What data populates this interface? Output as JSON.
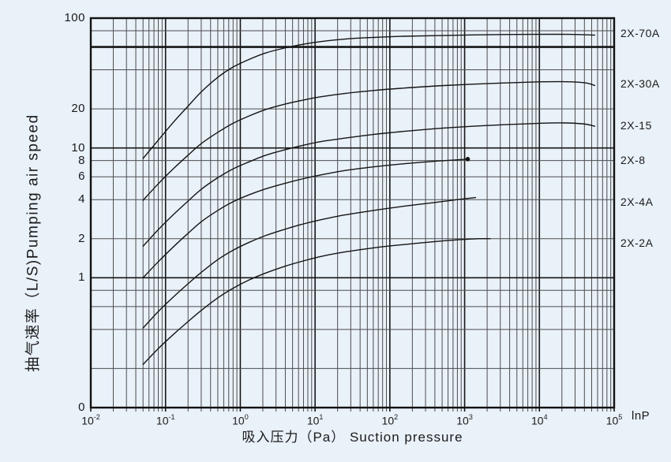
{
  "colors": {
    "background": "#e9f1f9",
    "grid_minor": "#4d4d4d",
    "grid_major": "#161616",
    "border": "#111111",
    "curve": "#151515",
    "text": "#1b1b1b"
  },
  "chart_data": {
    "type": "line",
    "title": "",
    "xlabel": "吸入压力（Pa） Suction pressure",
    "x_axis_right_label": "lnP",
    "ylabel": "抽气速率（L/S)Pumping air speed",
    "x_scale": "log",
    "y_scale": "log",
    "xlim": [
      0.01,
      100000
    ],
    "ylim": [
      0.1,
      100
    ],
    "grid": "on",
    "emphasized_gridline_y": 60,
    "x_tick_exponents": [
      "-2",
      "-1",
      "0",
      "1",
      "2",
      "3",
      "4",
      "5"
    ],
    "y_ticks": [
      {
        "label": "100",
        "value": 100
      },
      {
        "label": "20",
        "value": 20
      },
      {
        "label": "10",
        "value": 10
      },
      {
        "label": "8",
        "value": 8
      },
      {
        "label": "6",
        "value": 6
      },
      {
        "label": "4",
        "value": 4
      },
      {
        "label": "2",
        "value": 2
      },
      {
        "label": "1",
        "value": 1
      },
      {
        "label": "0",
        "value": 0.1
      }
    ],
    "legend_position": "right-margin",
    "series": [
      {
        "name": "2X-70A",
        "label_y_value": 77,
        "end_dot": false,
        "points": [
          [
            0.05,
            8.3
          ],
          [
            0.08,
            11.5
          ],
          [
            0.13,
            16
          ],
          [
            0.2,
            21
          ],
          [
            0.3,
            27
          ],
          [
            0.5,
            35
          ],
          [
            0.8,
            42
          ],
          [
            1.3,
            48
          ],
          [
            2.2,
            54
          ],
          [
            4,
            59
          ],
          [
            7,
            63
          ],
          [
            12,
            66
          ],
          [
            25,
            69
          ],
          [
            60,
            71
          ],
          [
            150,
            72.5
          ],
          [
            500,
            73.5
          ],
          [
            2000,
            74.5
          ],
          [
            8000,
            75
          ],
          [
            25000,
            75
          ],
          [
            55000,
            74
          ]
        ]
      },
      {
        "name": "2X-30A",
        "label_y_value": 31.5,
        "end_dot": false,
        "points": [
          [
            0.05,
            3.95
          ],
          [
            0.08,
            5.3
          ],
          [
            0.13,
            7
          ],
          [
            0.2,
            8.8
          ],
          [
            0.3,
            10.8
          ],
          [
            0.5,
            13.2
          ],
          [
            0.8,
            15.5
          ],
          [
            1.3,
            17.6
          ],
          [
            2.2,
            19.8
          ],
          [
            4,
            21.8
          ],
          [
            7,
            23.4
          ],
          [
            12,
            24.8
          ],
          [
            25,
            26.3
          ],
          [
            60,
            27.7
          ],
          [
            150,
            28.9
          ],
          [
            500,
            30.2
          ],
          [
            2000,
            31.3
          ],
          [
            8000,
            32.2
          ],
          [
            20000,
            32.4
          ],
          [
            40000,
            31.8
          ],
          [
            55000,
            30.3
          ]
        ]
      },
      {
        "name": "2X-15",
        "label_y_value": 14.9,
        "end_dot": false,
        "points": [
          [
            0.05,
            1.75
          ],
          [
            0.08,
            2.35
          ],
          [
            0.13,
            3.1
          ],
          [
            0.2,
            3.9
          ],
          [
            0.3,
            4.8
          ],
          [
            0.5,
            5.9
          ],
          [
            0.8,
            6.9
          ],
          [
            1.3,
            7.8
          ],
          [
            2.2,
            8.8
          ],
          [
            4,
            9.7
          ],
          [
            7,
            10.5
          ],
          [
            12,
            11.2
          ],
          [
            25,
            11.9
          ],
          [
            60,
            12.7
          ],
          [
            150,
            13.4
          ],
          [
            500,
            14.2
          ],
          [
            2000,
            14.9
          ],
          [
            8000,
            15.4
          ],
          [
            20000,
            15.6
          ],
          [
            40000,
            15.3
          ],
          [
            55000,
            14.7
          ]
        ]
      },
      {
        "name": "2X-8",
        "label_y_value": 8.1,
        "end_dot": true,
        "points": [
          [
            0.05,
            1.0
          ],
          [
            0.08,
            1.33
          ],
          [
            0.13,
            1.75
          ],
          [
            0.2,
            2.2
          ],
          [
            0.3,
            2.7
          ],
          [
            0.5,
            3.3
          ],
          [
            0.8,
            3.85
          ],
          [
            1.3,
            4.35
          ],
          [
            2.2,
            4.85
          ],
          [
            4,
            5.35
          ],
          [
            7,
            5.8
          ],
          [
            12,
            6.2
          ],
          [
            25,
            6.7
          ],
          [
            60,
            7.15
          ],
          [
            150,
            7.55
          ],
          [
            400,
            7.9
          ],
          [
            800,
            8.1
          ],
          [
            1100,
            8.2
          ]
        ]
      },
      {
        "name": "2X-4A",
        "label_y_value": 3.85,
        "end_dot": false,
        "points": [
          [
            0.05,
            0.41
          ],
          [
            0.08,
            0.55
          ],
          [
            0.13,
            0.72
          ],
          [
            0.2,
            0.9
          ],
          [
            0.3,
            1.1
          ],
          [
            0.5,
            1.38
          ],
          [
            0.8,
            1.63
          ],
          [
            1.3,
            1.87
          ],
          [
            2.2,
            2.12
          ],
          [
            4,
            2.37
          ],
          [
            7,
            2.6
          ],
          [
            12,
            2.8
          ],
          [
            25,
            3.05
          ],
          [
            60,
            3.3
          ],
          [
            150,
            3.55
          ],
          [
            400,
            3.8
          ],
          [
            800,
            4.0
          ],
          [
            1400,
            4.15
          ]
        ]
      },
      {
        "name": "2X-2A",
        "label_y_value": 1.87,
        "end_dot": false,
        "points": [
          [
            0.05,
            0.215
          ],
          [
            0.08,
            0.285
          ],
          [
            0.13,
            0.37
          ],
          [
            0.2,
            0.46
          ],
          [
            0.3,
            0.56
          ],
          [
            0.5,
            0.7
          ],
          [
            0.8,
            0.83
          ],
          [
            1.3,
            0.96
          ],
          [
            2.2,
            1.09
          ],
          [
            4,
            1.23
          ],
          [
            7,
            1.35
          ],
          [
            12,
            1.46
          ],
          [
            25,
            1.58
          ],
          [
            60,
            1.7
          ],
          [
            150,
            1.8
          ],
          [
            400,
            1.9
          ],
          [
            800,
            1.96
          ],
          [
            1500,
            2.0
          ],
          [
            2200,
            2.0
          ]
        ]
      }
    ]
  }
}
